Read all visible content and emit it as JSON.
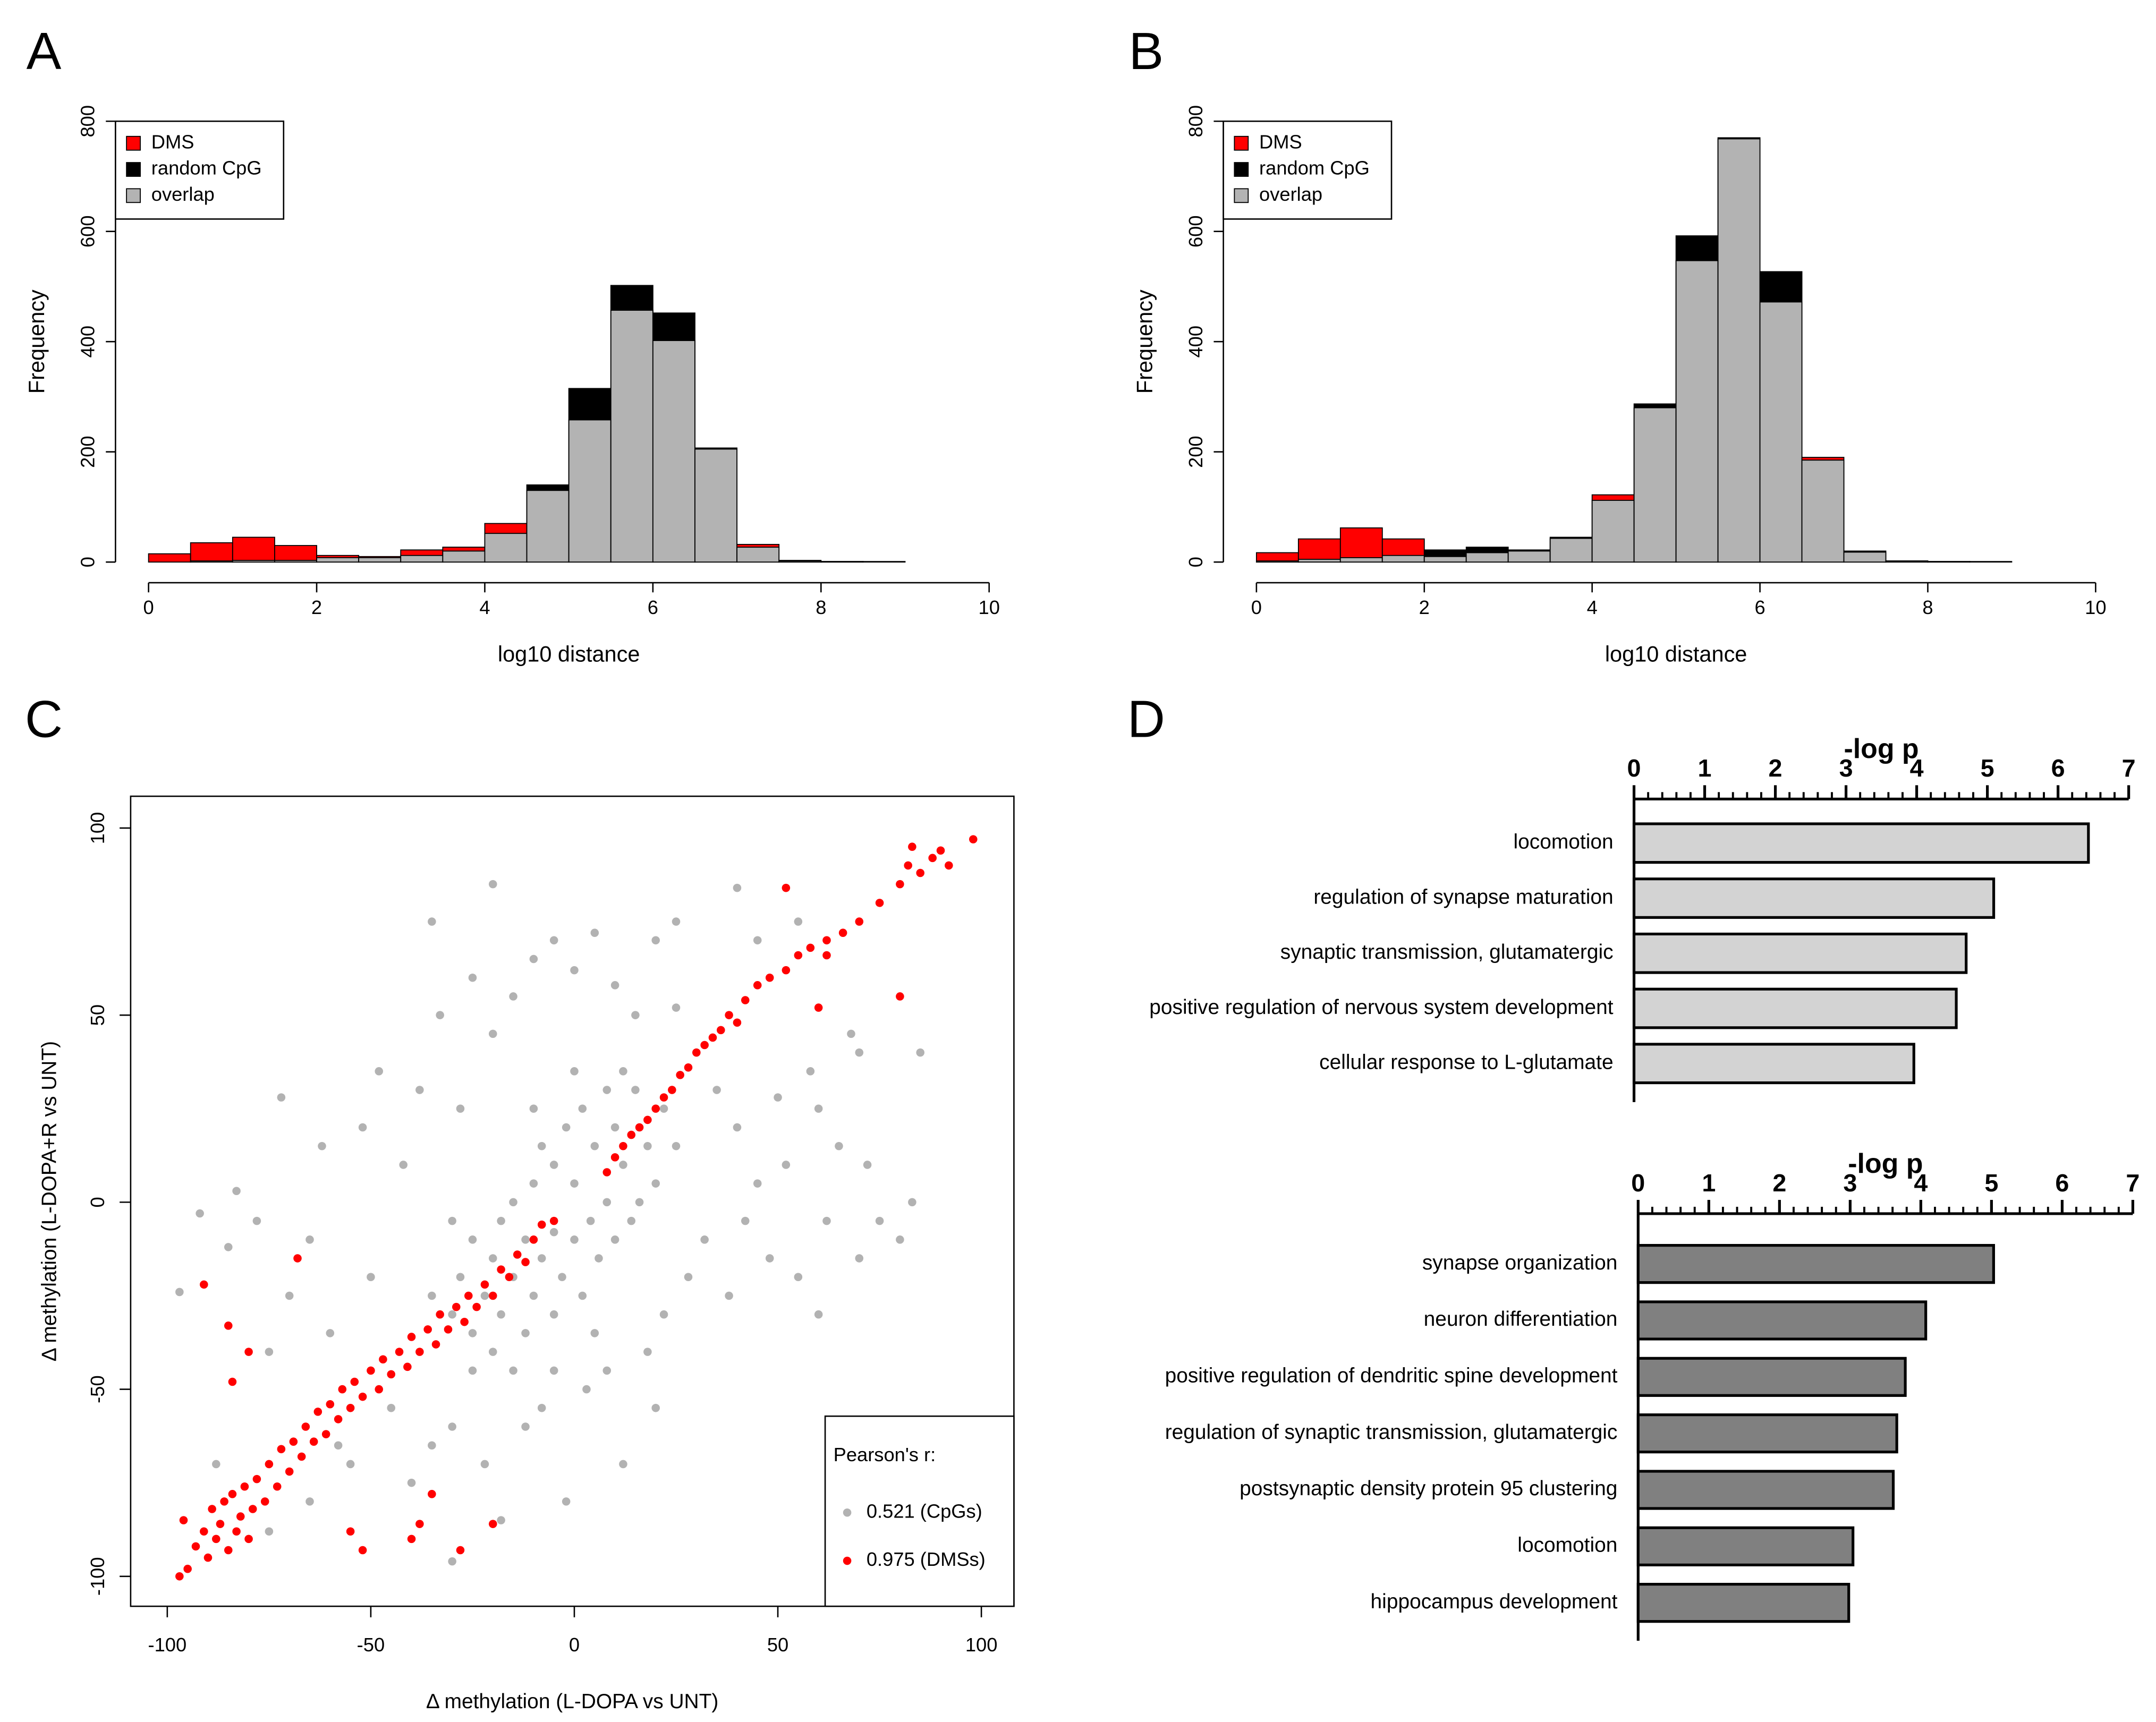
{
  "chart_data": [
    {
      "panel": "A",
      "type": "histogram",
      "bins": [
        0,
        0.5,
        1,
        1.5,
        2,
        2.5,
        3,
        3.5,
        4,
        4.5,
        5,
        5.5,
        6,
        6.5,
        7,
        7.5,
        8,
        8.5,
        9,
        9.5,
        10
      ],
      "series": [
        {
          "name": "DMS",
          "color": "#ff0000",
          "values": [
            15,
            35,
            45,
            30,
            12,
            10,
            22,
            27,
            70,
            130,
            258,
            457,
            402,
            205,
            32,
            2,
            1,
            0,
            0,
            0
          ]
        },
        {
          "name": "random CpG",
          "color": "#000000",
          "values": [
            0,
            2,
            3,
            3,
            8,
            8,
            12,
            20,
            52,
            140,
            315,
            502,
            452,
            207,
            27,
            3,
            1,
            1,
            0,
            0
          ]
        }
      ],
      "overlap": {
        "name": "overlap",
        "color": "#b3b3b3"
      },
      "xlim": [
        0,
        10
      ],
      "xticks": [
        0,
        2,
        4,
        6,
        8,
        10
      ],
      "ylim": [
        0,
        800
      ],
      "yticks": [
        0,
        200,
        400,
        600,
        800
      ],
      "xlabel": "log10 distance",
      "ylabel": "Frequency"
    },
    {
      "panel": "B",
      "type": "histogram",
      "bins": [
        0,
        0.5,
        1,
        1.5,
        2,
        2.5,
        3,
        3.5,
        4,
        4.5,
        5,
        5.5,
        6,
        6.5,
        7,
        7.5,
        8,
        8.5,
        9,
        9.5,
        10
      ],
      "series": [
        {
          "name": "DMS",
          "color": "#ff0000",
          "values": [
            17,
            42,
            62,
            42,
            10,
            17,
            20,
            43,
            122,
            280,
            547,
            768,
            472,
            190,
            18,
            2,
            1,
            0,
            0,
            0
          ]
        },
        {
          "name": "random CpG",
          "color": "#000000",
          "values": [
            2,
            5,
            8,
            12,
            22,
            27,
            22,
            45,
            112,
            287,
            592,
            770,
            527,
            185,
            20,
            2,
            1,
            1,
            0,
            0
          ]
        }
      ],
      "overlap": {
        "name": "overlap",
        "color": "#b3b3b3"
      },
      "xlim": [
        0,
        10
      ],
      "xticks": [
        0,
        2,
        4,
        6,
        8,
        10
      ],
      "ylim": [
        0,
        800
      ],
      "yticks": [
        0,
        200,
        400,
        600,
        800
      ],
      "xlabel": "log10 distance",
      "ylabel": "Frequency"
    },
    {
      "panel": "C",
      "type": "scatter",
      "legend_title": "Pearson's r:",
      "series": [
        {
          "name": "0.521 (CpGs)",
          "color": "#000000",
          "alpha": 0.3,
          "x": [
            -97,
            -92,
            -85,
            -83,
            -78,
            -75,
            -72,
            -70,
            -65,
            -62,
            -60,
            -58,
            -55,
            -52,
            -50,
            -48,
            -45,
            -42,
            -40,
            -38,
            -35,
            -33,
            -30,
            -28,
            -25,
            -22,
            -20,
            -18,
            -15,
            -12,
            -10,
            -8,
            -5,
            -2,
            0,
            3,
            5,
            8,
            10,
            12,
            15,
            18,
            20,
            22,
            25,
            28,
            30,
            32,
            35,
            38,
            40,
            42,
            45,
            48,
            50,
            52,
            55,
            58,
            60,
            62,
            65,
            68,
            70,
            72,
            75,
            80,
            83,
            85,
            70,
            45,
            40,
            55,
            -35,
            -20,
            25,
            -65,
            -75,
            -88,
            60,
            20,
            -30,
            -30,
            -28,
            -25,
            -25,
            -22,
            -20,
            -20,
            -18,
            -18,
            -15,
            -15,
            -12,
            -12,
            -10,
            -10,
            -8,
            -8,
            -5,
            -5,
            -5,
            -3,
            -2,
            0,
            0,
            2,
            2,
            4,
            5,
            6,
            8,
            8,
            10,
            10,
            12,
            14,
            15,
            16,
            18,
            20,
            22,
            -25,
            -15,
            -5,
            -30,
            25,
            -35,
            0,
            5,
            12,
            -10
          ],
          "values": [
            -24,
            -3,
            -12,
            3,
            -5,
            -40,
            28,
            -25,
            -10,
            15,
            -35,
            -65,
            -70,
            20,
            -20,
            35,
            -55,
            10,
            -75,
            30,
            -65,
            50,
            -60,
            25,
            60,
            -70,
            45,
            -85,
            55,
            -60,
            65,
            -55,
            70,
            -80,
            62,
            -50,
            72,
            -45,
            58,
            -70,
            50,
            -40,
            70,
            -30,
            52,
            -20,
            40,
            -10,
            30,
            -25,
            20,
            -5,
            5,
            -15,
            28,
            10,
            -20,
            35,
            25,
            -5,
            15,
            45,
            -15,
            10,
            -5,
            -10,
            0,
            40,
            40,
            70,
            84,
            75,
            75,
            85,
            75,
            -80,
            -88,
            -70,
            -30,
            -55,
            -96,
            -30,
            -20,
            -35,
            -10,
            -25,
            -15,
            -40,
            -5,
            -30,
            -20,
            0,
            -35,
            -10,
            5,
            -25,
            -15,
            15,
            -30,
            -8,
            10,
            -20,
            20,
            -10,
            5,
            -25,
            25,
            -5,
            15,
            -15,
            30,
            0,
            -10,
            20,
            10,
            -5,
            30,
            0,
            15,
            5,
            25,
            -45,
            -45,
            -45,
            -5,
            15,
            -25,
            35,
            -35,
            35,
            25
          ]
        },
        {
          "name": "0.975 (DMSs)",
          "color": "#ff0000",
          "alpha": 1,
          "x": [
            -97,
            -95,
            -96,
            -93,
            -91,
            -90,
            -89,
            -88,
            -87,
            -86,
            -85,
            -84,
            -83,
            -82,
            -81,
            -80,
            -79,
            -78,
            -76,
            -75,
            -73,
            -72,
            -70,
            -69,
            -67,
            -66,
            -64,
            -63,
            -61,
            -60,
            -58,
            -57,
            -55,
            -54,
            -52,
            -50,
            -48,
            -47,
            -45,
            -43,
            -41,
            -40,
            -38,
            -36,
            -34,
            -33,
            -31,
            -29,
            -27,
            -26,
            -24,
            -22,
            -20,
            -18,
            -16,
            -14,
            -12,
            -10,
            -8,
            -5,
            8,
            10,
            12,
            14,
            16,
            18,
            20,
            22,
            24,
            26,
            28,
            30,
            32,
            34,
            36,
            38,
            40,
            42,
            45,
            48,
            52,
            55,
            58,
            62,
            66,
            70,
            75,
            80,
            82,
            85,
            88,
            90,
            92,
            98,
            83,
            -91,
            -68,
            -85,
            -55,
            -52,
            52,
            80,
            62,
            60,
            -28,
            -40,
            -38,
            -20,
            -35,
            -80,
            -84
          ],
          "values": [
            -100,
            -98,
            -85,
            -92,
            -88,
            -95,
            -82,
            -90,
            -86,
            -80,
            -93,
            -78,
            -88,
            -84,
            -76,
            -90,
            -82,
            -74,
            -80,
            -70,
            -76,
            -66,
            -72,
            -64,
            -68,
            -60,
            -64,
            -56,
            -62,
            -54,
            -58,
            -50,
            -55,
            -48,
            -52,
            -45,
            -50,
            -42,
            -46,
            -40,
            -44,
            -36,
            -40,
            -34,
            -38,
            -30,
            -34,
            -28,
            -32,
            -25,
            -28,
            -22,
            -25,
            -18,
            -20,
            -14,
            -16,
            -10,
            -6,
            -5,
            8,
            12,
            15,
            18,
            20,
            22,
            25,
            28,
            30,
            34,
            36,
            40,
            42,
            44,
            46,
            50,
            48,
            54,
            58,
            60,
            62,
            66,
            68,
            70,
            72,
            75,
            80,
            85,
            90,
            88,
            92,
            94,
            90,
            97,
            95,
            -22,
            -15,
            -33,
            -88,
            -93,
            84,
            55,
            66,
            52,
            -93,
            -90,
            -86,
            -86,
            -78,
            -40,
            -48
          ]
        }
      ],
      "xlim": [
        -109,
        108
      ],
      "xticks": [
        -100,
        -50,
        0,
        50,
        100
      ],
      "ylim": [
        -108,
        108.5
      ],
      "yticks": [
        -100,
        -50,
        0,
        50,
        100
      ],
      "xlabel": "Δ methylation (L-DOPA vs UNT)",
      "ylabel": "Δ methylation (L-DOPA+R vs UNT)"
    },
    {
      "panel": "D",
      "type": "barh",
      "title": "-log p",
      "color": "#d3d3d3",
      "categories": [
        "locomotion",
        "regulation of synapse maturation",
        "synaptic transmission, glutamatergic",
        "positive regulation of nervous system development",
        "cellular response to L-glutamate"
      ],
      "values": [
        6.43,
        5.09,
        4.7,
        4.56,
        3.96
      ],
      "xlim": [
        0,
        7
      ],
      "xticks": [
        0,
        1,
        2,
        3,
        4,
        5,
        6,
        7
      ],
      "xminor": [
        0.2,
        0.4,
        0.6,
        0.8,
        1.2,
        1.4,
        1.6,
        1.8,
        2.2,
        2.4,
        2.6,
        2.8,
        3.2,
        3.4,
        3.6,
        3.8,
        4.2,
        4.4,
        4.6,
        4.8,
        5.2,
        5.4,
        5.6,
        5.8,
        6.2,
        6.4,
        6.6,
        6.8
      ]
    },
    {
      "type": "barh",
      "title": "-log p",
      "color": "#808080",
      "categories": [
        "synapse organization",
        "neuron differentiation",
        "positive regulation of dendritic spine development",
        "regulation of synaptic transmission, glutamatergic",
        "postsynaptic density protein 95 clustering",
        "locomotion",
        "hippocampus development"
      ],
      "values": [
        5.03,
        4.07,
        3.78,
        3.66,
        3.61,
        3.04,
        2.98
      ],
      "xlim": [
        0,
        7
      ],
      "xticks": [
        0,
        1,
        2,
        3,
        4,
        5,
        6,
        7
      ],
      "xminor": [
        0.2,
        0.4,
        0.6,
        0.8,
        1.2,
        1.4,
        1.6,
        1.8,
        2.2,
        2.4,
        2.6,
        2.8,
        3.2,
        3.4,
        3.6,
        3.8,
        4.2,
        4.4,
        4.6,
        4.8,
        5.2,
        5.4,
        5.6,
        5.8,
        6.2,
        6.4,
        6.6,
        6.8
      ]
    }
  ]
}
